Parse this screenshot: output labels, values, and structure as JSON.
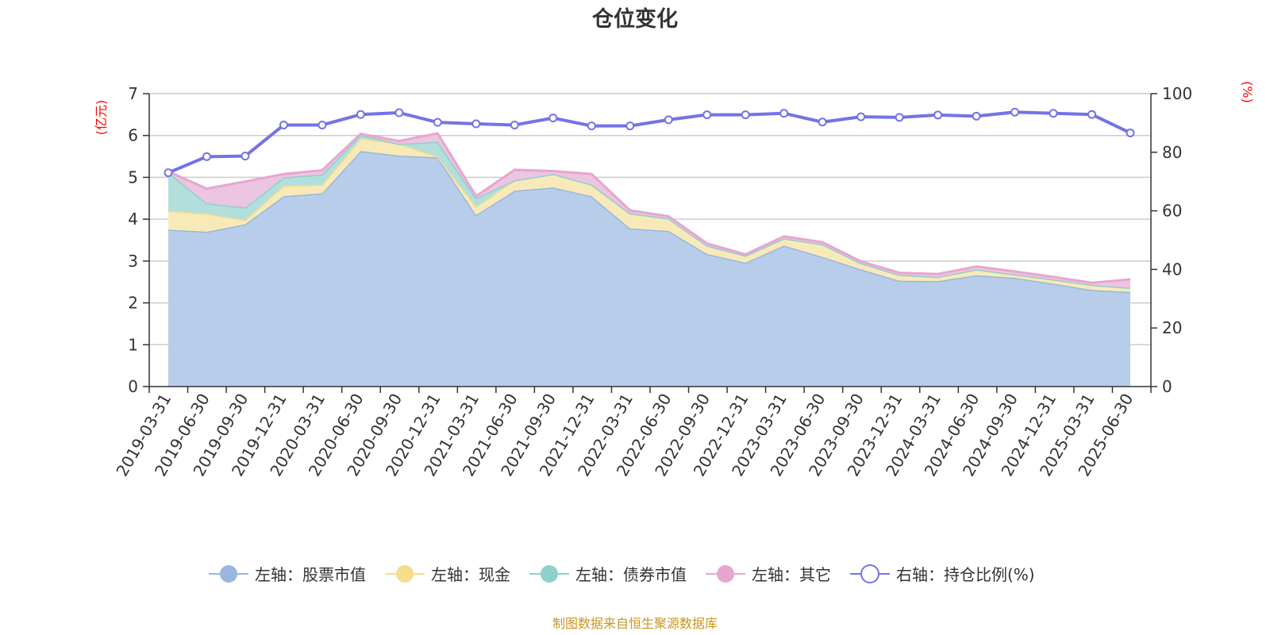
{
  "chart_data": {
    "type": "area",
    "title": "仓位变化",
    "left_unit": "(亿元)",
    "right_unit": "(%)",
    "left_ylim": [
      0,
      7
    ],
    "left_ticks": [
      "0",
      "1",
      "2",
      "3",
      "4",
      "5",
      "6",
      "7"
    ],
    "right_ylim": [
      0,
      100
    ],
    "right_ticks": [
      "0",
      "20",
      "40",
      "60",
      "80",
      "100"
    ],
    "grid": true,
    "stacked": true,
    "legend_position": "bottom",
    "categories": [
      "2019-03-31",
      "2019-06-30",
      "2019-09-30",
      "2019-12-31",
      "2020-03-31",
      "2020-06-30",
      "2020-09-30",
      "2020-12-31",
      "2021-03-31",
      "2021-06-30",
      "2021-09-30",
      "2021-12-31",
      "2022-03-31",
      "2022-06-30",
      "2022-09-30",
      "2022-12-31",
      "2023-03-31",
      "2023-06-30",
      "2023-09-30",
      "2023-12-31",
      "2024-03-31",
      "2024-06-30",
      "2024-09-30",
      "2024-12-31",
      "2025-03-31",
      "2025-06-30"
    ],
    "series": [
      {
        "name": "左轴：股票市值",
        "axis": "left",
        "type": "area",
        "color": "#9ab6df",
        "fill": "#b8cdea",
        "values": [
          3.75,
          3.7,
          3.88,
          4.55,
          4.62,
          5.63,
          5.52,
          5.48,
          4.1,
          4.68,
          4.76,
          4.55,
          3.78,
          3.72,
          3.17,
          2.96,
          3.37,
          3.1,
          2.8,
          2.53,
          2.52,
          2.66,
          2.6,
          2.46,
          2.31,
          2.26
        ]
      },
      {
        "name": "左轴：现金",
        "axis": "left",
        "type": "area",
        "color": "#f5dd8c",
        "fill": "#f8eab8",
        "values": [
          0.45,
          0.43,
          0.1,
          0.25,
          0.2,
          0.3,
          0.28,
          0.02,
          0.2,
          0.25,
          0.32,
          0.28,
          0.36,
          0.3,
          0.2,
          0.17,
          0.17,
          0.3,
          0.15,
          0.14,
          0.1,
          0.14,
          0.08,
          0.1,
          0.12,
          0.1
        ]
      },
      {
        "name": "左轴：债券市值",
        "axis": "left",
        "type": "area",
        "color": "#8fd0cc",
        "fill": "#b2dfdb",
        "values": [
          0.92,
          0.25,
          0.3,
          0.2,
          0.25,
          0.08,
          0.0,
          0.35,
          0.2,
          0.0,
          0.0,
          0.0,
          0.0,
          0.0,
          0.0,
          0.0,
          0.0,
          0.0,
          0.0,
          0.0,
          0.0,
          0.0,
          0.0,
          0.0,
          0.0,
          0.0
        ]
      },
      {
        "name": "左轴：其它",
        "axis": "left",
        "type": "area",
        "color": "#e8a5d0",
        "fill": "#ecc5e0",
        "values": [
          0.02,
          0.35,
          0.62,
          0.08,
          0.1,
          0.03,
          0.07,
          0.2,
          0.05,
          0.25,
          0.07,
          0.25,
          0.07,
          0.05,
          0.05,
          0.03,
          0.05,
          0.05,
          0.04,
          0.05,
          0.07,
          0.07,
          0.07,
          0.06,
          0.05,
          0.2
        ]
      },
      {
        "name": "右轴：持仓比例(%)",
        "axis": "right",
        "type": "line",
        "color": "#7373e6",
        "values": [
          73.0,
          78.5,
          78.7,
          89.3,
          89.3,
          92.9,
          93.5,
          90.2,
          89.7,
          89.3,
          91.7,
          89.0,
          89.0,
          91.1,
          92.8,
          92.8,
          93.3,
          90.3,
          92.1,
          91.9,
          92.7,
          92.3,
          93.7,
          93.3,
          92.9,
          86.6
        ]
      }
    ]
  },
  "source_note": "制图数据来自恒生聚源数据库"
}
